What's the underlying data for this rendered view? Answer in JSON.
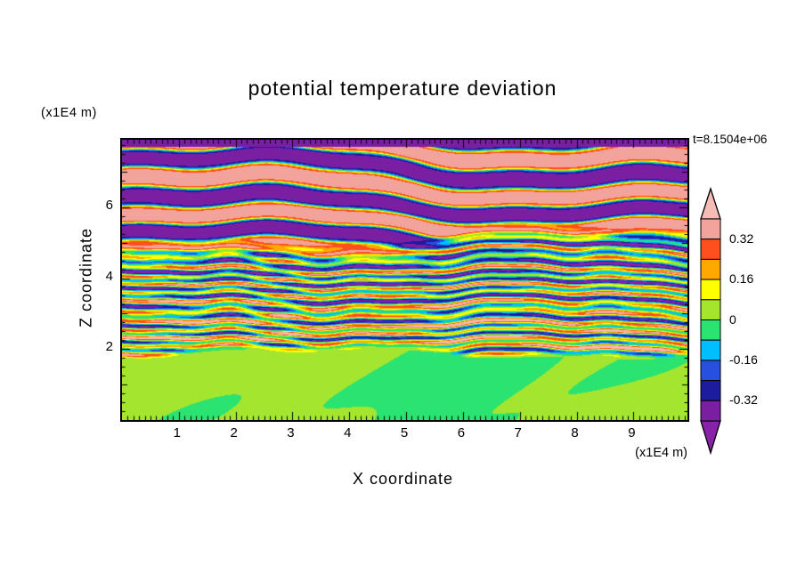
{
  "title": "potential temperature deviation",
  "time_label": "t=8.1504e+06",
  "axes": {
    "x": {
      "label": "X coordinate",
      "unit": "(x1E4 m)",
      "min": 0,
      "max": 9.95,
      "ticks": [
        1,
        2,
        3,
        4,
        5,
        6,
        7,
        8,
        9
      ]
    },
    "z": {
      "label": "Z coordinate",
      "unit": "(x1E4 m)",
      "min": 0,
      "max": 7.9,
      "ticks": [
        2,
        4,
        6
      ]
    }
  },
  "colorbar": {
    "levels": [
      -0.4,
      -0.32,
      -0.24,
      -0.16,
      -0.08,
      0,
      0.08,
      0.16,
      0.24,
      0.32,
      0.4
    ],
    "bin_colors": [
      "#7A1FA2",
      "#1C1C9E",
      "#2850E0",
      "#00BFFF",
      "#2BE371",
      "#A4E530",
      "#FFFF00",
      "#FFA800",
      "#FF4F1F",
      "#F2A49C"
    ],
    "below_color": "#8A22A8",
    "above_color": "#F4BCB4",
    "tick_labels": [
      {
        "value": 0.32,
        "label": "0.32"
      },
      {
        "value": 0.16,
        "label": "0.16"
      },
      {
        "value": 0,
        "label": "0"
      },
      {
        "value": -0.16,
        "label": "-0.16"
      },
      {
        "value": -0.32,
        "label": "-0.32"
      }
    ]
  },
  "chart_data": {
    "type": "heatmap",
    "title": "potential temperature deviation",
    "time_annotation": "t=8.1504e+06",
    "xlabel": "X coordinate",
    "ylabel": "Z coordinate",
    "x_unit": "(x1E4 m)",
    "z_unit": "(x1E4 m)",
    "x_range": [
      0,
      9.95
    ],
    "z_range": [
      0,
      7.9
    ],
    "contour_levels": [
      -0.4,
      -0.32,
      -0.24,
      -0.16,
      -0.08,
      0,
      0.08,
      0.16,
      0.24,
      0.32,
      0.4
    ],
    "legend_position": "right-colorbar",
    "regions": [
      {
        "z_range": [
          0,
          2
        ],
        "value_range": [
          -0.08,
          0.08
        ],
        "description": "quiescent lower layer: smooth large blobs of near-zero deviation (spring-green and yellow-green)"
      },
      {
        "z_range": [
          2,
          4.9
        ],
        "value_range": [
          -0.4,
          0.4
        ],
        "description": "turbulent middle layer: fine elongated horizontal striations spanning the full color range (navy, cyan, green, yellow, orange, red)"
      },
      {
        "z_range": [
          4.9,
          7.9
        ],
        "value_range": [
          -0.48,
          0.48
        ],
        "description": "stratified upper layer: thick alternating wavy bands of strong negative (purple) and strong positive (salmon-pink) deviation; solid purple strip at the very top"
      }
    ]
  }
}
